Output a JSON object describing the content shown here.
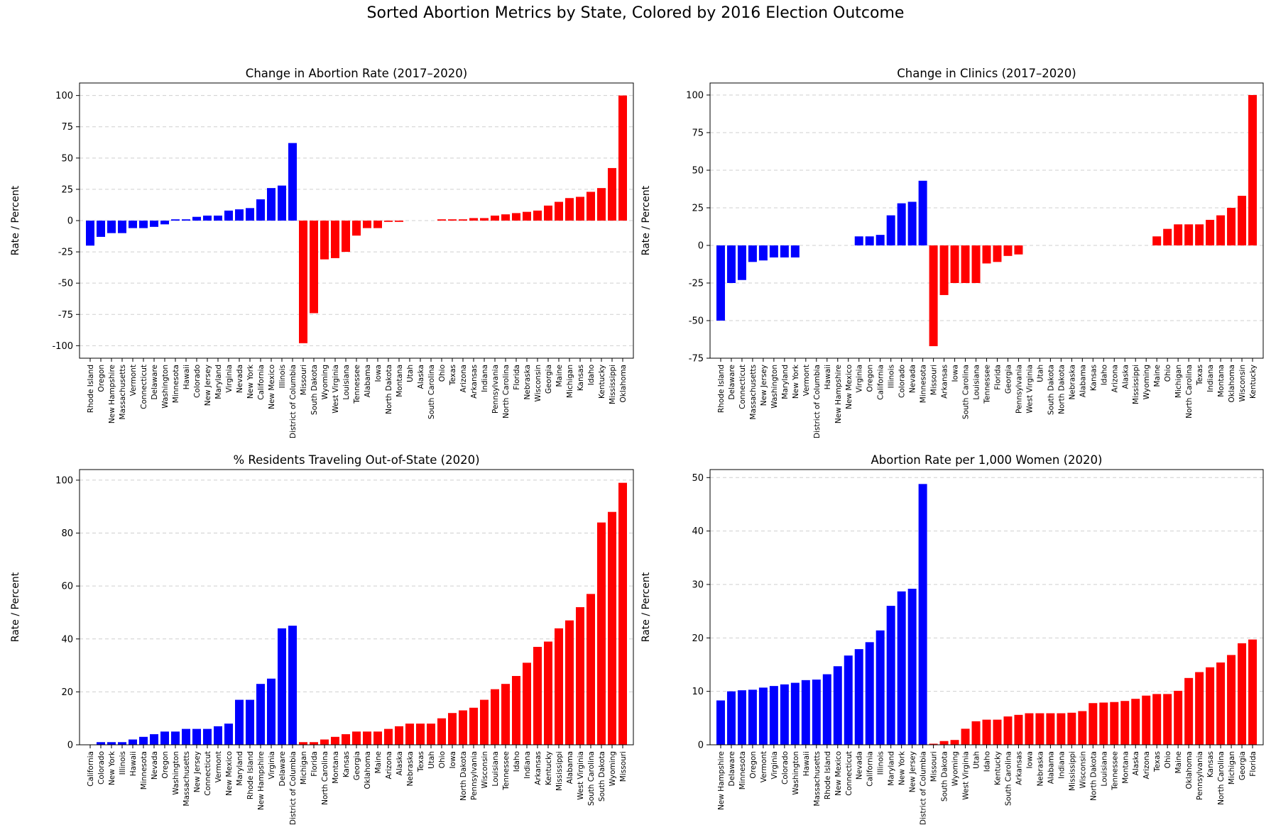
{
  "figure": {
    "title": "Sorted Abortion Metrics by State, Colored by 2016 Election Outcome",
    "colors": {
      "clinton": "#0000ff",
      "trump": "#ff0000"
    }
  },
  "chart_data": [
    {
      "type": "bar",
      "title": "Change in Abortion Rate (2017–2020)",
      "ylabel": "Rate / Percent",
      "ylim": [
        -110,
        110
      ],
      "yticks": [
        -100,
        -75,
        -50,
        -25,
        0,
        25,
        50,
        75,
        100
      ],
      "grid": "y-dashed",
      "series": [
        {
          "name": "",
          "color": "#0000ff",
          "categories": [
            "Rhode Island",
            "Oregon",
            "New Hampshire",
            "Massachusetts",
            "Vermont",
            "Connecticut",
            "Delaware",
            "Washington",
            "Minnesota",
            "Hawaii",
            "Colorado",
            "New Jersey",
            "Maryland",
            "Virginia",
            "Nevada",
            "New York",
            "California",
            "New Mexico",
            "Illinois",
            "District of Columbia"
          ],
          "values": [
            -20,
            -13,
            -10,
            -10,
            -6,
            -6,
            -5,
            -3,
            1,
            1,
            3,
            4,
            4,
            8,
            9,
            10,
            17,
            26,
            28,
            62
          ]
        },
        {
          "name": "",
          "color": "#ff0000",
          "categories": [
            "Missouri",
            "South Dakota",
            "Wyoming",
            "West Virginia",
            "Louisiana",
            "Tennessee",
            "Alabama",
            "Iowa",
            "North Dakota",
            "Montana",
            "Utah",
            "Alaska",
            "South Carolina",
            "Ohio",
            "Texas",
            "Arizona",
            "Arkansas",
            "Indiana",
            "Pennsylvania",
            "North Carolina",
            "Florida",
            "Nebraska",
            "Wisconsin",
            "Georgia",
            "Maine",
            "Michigan",
            "Kansas",
            "Idaho",
            "Kentucky",
            "Mississippi",
            "Oklahoma"
          ],
          "values": [
            -98,
            -74,
            -31,
            -30,
            -25,
            -12,
            -6,
            -6,
            -1,
            -1,
            0,
            0,
            0,
            1,
            1,
            1,
            2,
            2,
            4,
            5,
            6,
            7,
            8,
            12,
            15,
            18,
            19,
            23,
            26,
            42,
            100
          ]
        }
      ]
    },
    {
      "type": "bar",
      "title": "Change in Clinics (2017–2020)",
      "ylabel": "Rate / Percent",
      "ylim": [
        -75,
        108
      ],
      "yticks": [
        -75,
        -50,
        -25,
        0,
        25,
        50,
        75,
        100
      ],
      "grid": "y-dashed",
      "series": [
        {
          "name": "",
          "color": "#0000ff",
          "categories": [
            "Rhode Island",
            "Delaware",
            "Connecticut",
            "Massachusetts",
            "New Jersey",
            "Washington",
            "Maryland",
            "New York",
            "Vermont",
            "District of Columbia",
            "Hawaii",
            "New Hampshire",
            "New Mexico",
            "Virginia",
            "Oregon",
            "California",
            "Illinois",
            "Colorado",
            "Nevada",
            "Minnesota"
          ],
          "values": [
            -50,
            -25,
            -23,
            -11,
            -10,
            -8,
            -8,
            -8,
            0,
            0,
            0,
            0,
            0,
            6,
            6,
            7,
            20,
            28,
            29,
            43
          ]
        },
        {
          "name": "",
          "color": "#ff0000",
          "categories": [
            "Missouri",
            "Arkansas",
            "Iowa",
            "South Carolina",
            "Louisiana",
            "Tennessee",
            "Florida",
            "Georgia",
            "Pennsylvania",
            "West Virginia",
            "Utah",
            "South Dakota",
            "North Dakota",
            "Nebraska",
            "Alabama",
            "Kansas",
            "Idaho",
            "Arizona",
            "Alaska",
            "Mississippi",
            "Wyoming",
            "Maine",
            "Ohio",
            "Michigan",
            "North Carolina",
            "Texas",
            "Indiana",
            "Montana",
            "Oklahoma",
            "Wisconsin",
            "Kentucky"
          ],
          "values": [
            -67,
            -33,
            -25,
            -25,
            -25,
            -12,
            -11,
            -7,
            -6,
            0,
            0,
            0,
            0,
            0,
            0,
            0,
            0,
            0,
            0,
            0,
            0,
            6,
            11,
            14,
            14,
            14,
            17,
            20,
            25,
            33,
            100
          ]
        }
      ]
    },
    {
      "type": "bar",
      "title": "% Residents Traveling Out-of-State (2020)",
      "ylabel": "Rate / Percent",
      "ylim": [
        0,
        104
      ],
      "yticks": [
        0,
        20,
        40,
        60,
        80,
        100
      ],
      "grid": "y-dashed",
      "series": [
        {
          "name": "",
          "color": "#0000ff",
          "categories": [
            "California",
            "Colorado",
            "New York",
            "Illinois",
            "Hawaii",
            "Minnesota",
            "Nevada",
            "Oregon",
            "Washington",
            "Massachusetts",
            "New Jersey",
            "Connecticut",
            "Vermont",
            "New Mexico",
            "Maryland",
            "Rhode Island",
            "New Hampshire",
            "Virginia",
            "Delaware",
            "District of Columbia"
          ],
          "values": [
            0,
            1,
            1,
            1,
            2,
            3,
            4,
            5,
            5,
            6,
            6,
            6,
            7,
            8,
            17,
            17,
            23,
            25,
            44,
            45
          ]
        },
        {
          "name": "",
          "color": "#ff0000",
          "categories": [
            "Michigan",
            "Florida",
            "North Carolina",
            "Montana",
            "Kansas",
            "Georgia",
            "Oklahoma",
            "Maine",
            "Arizona",
            "Alaska",
            "Nebraska",
            "Texas",
            "Utah",
            "Ohio",
            "Iowa",
            "North Dakota",
            "Pennsylvania",
            "Wisconsin",
            "Louisiana",
            "Tennessee",
            "Idaho",
            "Indiana",
            "Arkansas",
            "Kentucky",
            "Mississippi",
            "Alabama",
            "West Virginia",
            "South Carolina",
            "South Dakota",
            "Wyoming",
            "Missouri"
          ],
          "values": [
            1,
            1,
            2,
            3,
            4,
            5,
            5,
            5,
            6,
            7,
            8,
            8,
            8,
            10,
            12,
            13,
            14,
            17,
            21,
            23,
            26,
            31,
            37,
            39,
            44,
            47,
            52,
            57,
            84,
            88,
            99
          ]
        }
      ]
    },
    {
      "type": "bar",
      "title": "Abortion Rate per 1,000 Women (2020)",
      "ylabel": "Rate / Percent",
      "ylim": [
        0,
        51.5
      ],
      "yticks": [
        0,
        10,
        20,
        30,
        40,
        50
      ],
      "grid": "y-dashed",
      "series": [
        {
          "name": "",
          "color": "#0000ff",
          "categories": [
            "New Hampshire",
            "Delaware",
            "Minnesota",
            "Oregon",
            "Vermont",
            "Virginia",
            "Colorado",
            "Washington",
            "Hawaii",
            "Massachusetts",
            "Rhode Island",
            "New Mexico",
            "Connecticut",
            "Nevada",
            "California",
            "Illinois",
            "Maryland",
            "New York",
            "New Jersey",
            "District of Columbia"
          ],
          "values": [
            8.3,
            10.0,
            10.2,
            10.3,
            10.7,
            11.0,
            11.3,
            11.6,
            12.1,
            12.2,
            13.2,
            14.7,
            16.7,
            17.9,
            19.2,
            21.4,
            26.0,
            28.7,
            29.2,
            48.8
          ]
        },
        {
          "name": "",
          "color": "#ff0000",
          "categories": [
            "Missouri",
            "South Dakota",
            "Wyoming",
            "West Virginia",
            "Utah",
            "Idaho",
            "Kentucky",
            "South Carolina",
            "Arkansas",
            "Iowa",
            "Nebraska",
            "Alabama",
            "Indiana",
            "Mississippi",
            "Wisconsin",
            "North Dakota",
            "Louisiana",
            "Tennessee",
            "Montana",
            "Alaska",
            "Arizona",
            "Texas",
            "Ohio",
            "Maine",
            "Oklahoma",
            "Pennsylvania",
            "Kansas",
            "North Carolina",
            "Michigan",
            "Georgia",
            "Florida"
          ],
          "values": [
            0.2,
            0.7,
            0.9,
            3.0,
            4.4,
            4.7,
            4.7,
            5.3,
            5.6,
            5.9,
            5.9,
            5.9,
            5.9,
            6.0,
            6.3,
            7.8,
            7.9,
            8.0,
            8.2,
            8.6,
            9.2,
            9.5,
            9.5,
            10.1,
            12.5,
            13.6,
            14.5,
            15.4,
            16.8,
            19.0,
            19.7
          ]
        }
      ]
    }
  ]
}
